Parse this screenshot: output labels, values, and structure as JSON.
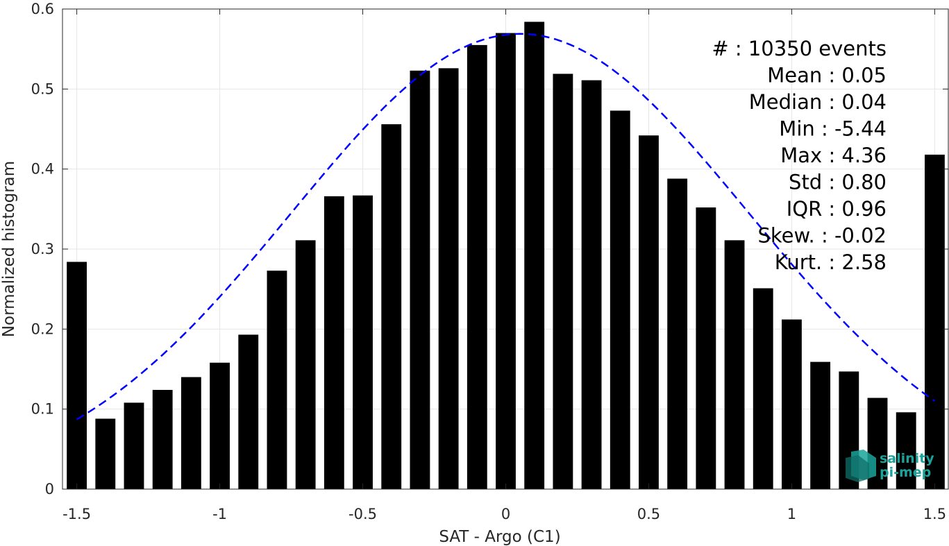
{
  "chart_data": {
    "type": "bar",
    "title": "",
    "xlabel": "SAT - Argo (C1)",
    "ylabel": "Normalized histogram",
    "xlim": [
      -1.55,
      1.55
    ],
    "ylim": [
      0,
      0.6
    ],
    "xticks": [
      -1.5,
      -1,
      -0.5,
      0,
      0.5,
      1,
      1.5
    ],
    "xtick_labels": [
      "-1.5",
      "-1",
      "-0.5",
      "0",
      "0.5",
      "1",
      "1.5"
    ],
    "yticks": [
      0,
      0.1,
      0.2,
      0.3,
      0.4,
      0.5,
      0.6
    ],
    "ytick_labels": [
      "0",
      "0.1",
      "0.2",
      "0.3",
      "0.4",
      "0.5",
      "0.6"
    ],
    "grid": true,
    "bar_color": "#000000",
    "fit_color": "#0000ff",
    "x": [
      -1.5,
      -1.4,
      -1.3,
      -1.2,
      -1.1,
      -1.0,
      -0.9,
      -0.8,
      -0.7,
      -0.6,
      -0.5,
      -0.4,
      -0.3,
      -0.2,
      -0.1,
      0.0,
      0.1,
      0.2,
      0.3,
      0.4,
      0.5,
      0.6,
      0.7,
      0.8,
      0.9,
      1.0,
      1.1,
      1.2,
      1.3,
      1.4,
      1.5
    ],
    "values": [
      0.284,
      0.088,
      0.108,
      0.124,
      0.14,
      0.158,
      0.193,
      0.273,
      0.311,
      0.366,
      0.367,
      0.456,
      0.523,
      0.526,
      0.555,
      0.57,
      0.584,
      0.519,
      0.511,
      0.473,
      0.442,
      0.388,
      0.352,
      0.311,
      0.251,
      0.212,
      0.159,
      0.147,
      0.114,
      0.096,
      0.418
    ],
    "fit": {
      "type": "gaussian",
      "style": "dashed",
      "x_range": [
        -1.5,
        1.5
      ],
      "mean": 0.05,
      "std": 0.8,
      "peak": 0.569
    },
    "stats": [
      {
        "label": "#  ",
        "value": ": 10350 events"
      },
      {
        "label": "Mean ",
        "value": ": 0.05"
      },
      {
        "label": "Median ",
        "value": ": 0.04"
      },
      {
        "label": "Min ",
        "value": ": -5.44"
      },
      {
        "label": "Max ",
        "value": ": 4.36"
      },
      {
        "label": "Std ",
        "value": ": 0.80"
      },
      {
        "label": "IQR ",
        "value": ": 0.96"
      },
      {
        "label": "Skew. ",
        "value": ": -0.02"
      },
      {
        "label": "Kurt. ",
        "value": ": 2.58"
      }
    ]
  },
  "logo": {
    "line1": "salinity",
    "line2": "pi-mep",
    "color": "#1aa39a"
  }
}
